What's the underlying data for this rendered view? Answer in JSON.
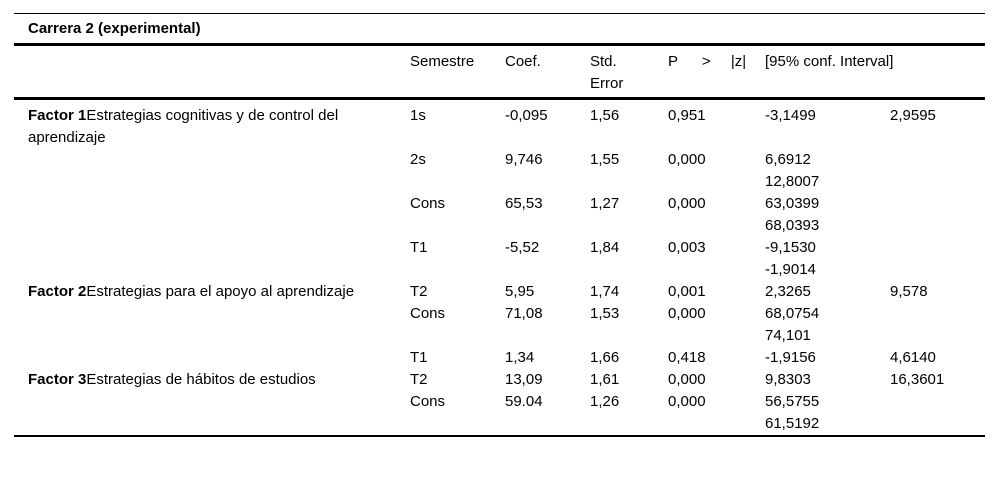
{
  "title": "Carrera 2 (experimental)",
  "table": {
    "headers": {
      "semestre": "Semestre",
      "coef": "Coef.",
      "std_error": "Std. Error",
      "p": "P",
      "gt": ">",
      "z": "|z|",
      "ci": "[95% conf. Interval]"
    },
    "rows": [
      {
        "factor": "Factor 1",
        "factor_desc": "Estrategias cognitivas y de control del aprendizaje",
        "semestre": "1s",
        "coef": "-0,095",
        "std_error": "1,56",
        "p": "0,951",
        "ci_low": "-3,1499",
        "ci_high": "2,9595",
        "ci_stacked": false
      },
      {
        "factor": "",
        "factor_desc": "",
        "semestre": "2s",
        "coef": "9,746",
        "std_error": "1,55",
        "p": "0,000",
        "ci_low": "6,6912",
        "ci_high": "12,8007",
        "ci_stacked": true
      },
      {
        "factor": "",
        "factor_desc": "",
        "semestre": "Cons",
        "coef": "65,53",
        "std_error": "1,27",
        "p": "0,000",
        "ci_low": "63,0399",
        "ci_high": "68,0393",
        "ci_stacked": true
      },
      {
        "factor": "",
        "factor_desc": "",
        "semestre": "T1",
        "coef": "-5,52",
        "std_error": "1,84",
        "p": "0,003",
        "ci_low": "-9,1530",
        "ci_high": "-1,9014",
        "ci_stacked": true
      },
      {
        "factor": "Factor 2",
        "factor_desc": "Estrategias para el apoyo al aprendizaje",
        "semestre": "T2",
        "coef": "5,95",
        "std_error": "1,74",
        "p": "0,001",
        "ci_low": "2,3265",
        "ci_high": "9,578",
        "ci_stacked": false
      },
      {
        "factor": "",
        "factor_desc": "",
        "semestre": "Cons",
        "coef": "71,08",
        "std_error": "1,53",
        "p": "0,000",
        "ci_low": "68,0754",
        "ci_high": "74,101",
        "ci_stacked": true
      },
      {
        "factor": "",
        "factor_desc": "",
        "semestre": "T1",
        "coef": "1,34",
        "std_error": "1,66",
        "p": "0,418",
        "ci_low": "-1,9156",
        "ci_high": "4,6140",
        "ci_stacked": false
      },
      {
        "factor": "Factor 3",
        "factor_desc": "Estrategias de hábitos de estudios",
        "semestre": "T2",
        "coef": "13,09",
        "std_error": "1,61",
        "p": "0,000",
        "ci_low": "9,8303",
        "ci_high": "16,3601",
        "ci_stacked": false
      },
      {
        "factor": "",
        "factor_desc": "",
        "semestre": "Cons",
        "coef": "59.04",
        "std_error": "1,26",
        "p": "0,000",
        "ci_low": "56,5755",
        "ci_high": "61,5192",
        "ci_stacked": true
      }
    ]
  }
}
